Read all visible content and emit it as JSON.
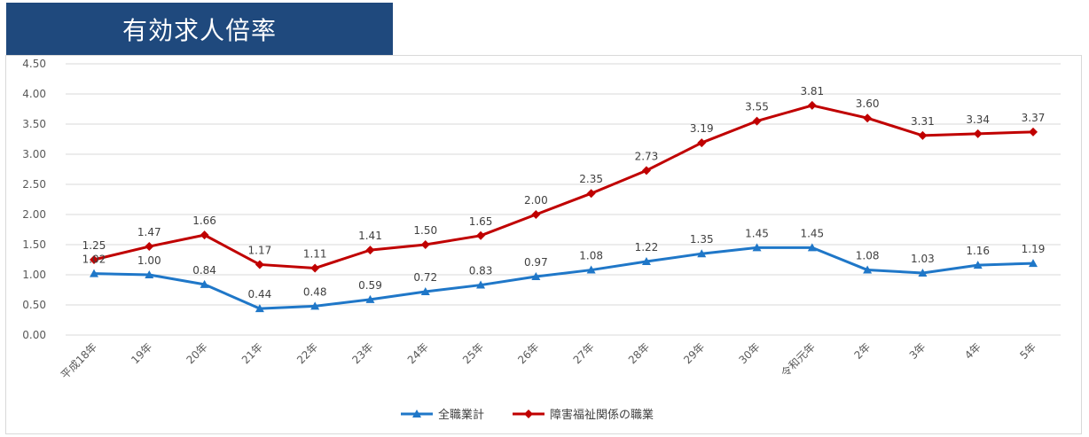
{
  "title": "有効求人倍率",
  "chart_data": {
    "type": "line",
    "categories": [
      "平成18年",
      "19年",
      "20年",
      "21年",
      "22年",
      "23年",
      "24年",
      "25年",
      "26年",
      "27年",
      "28年",
      "29年",
      "30年",
      "令和元年",
      "2年",
      "3年",
      "4年",
      "5年"
    ],
    "series": [
      {
        "name": "全職業計",
        "color": "#1f77c8",
        "marker": "triangle",
        "values": [
          1.02,
          1.0,
          0.84,
          0.44,
          0.48,
          0.59,
          0.72,
          0.83,
          0.97,
          1.08,
          1.22,
          1.35,
          1.45,
          1.45,
          1.08,
          1.03,
          1.16,
          1.19
        ],
        "labels": [
          "1.02",
          "1.00",
          "0.84",
          "0.44",
          "0.48",
          "0.59",
          "0.72",
          "0.83",
          "0.97",
          "1.08",
          "1.22",
          "1.35",
          "1.45",
          "1.45",
          "1.08",
          "1.03",
          "1.16",
          "1.19"
        ]
      },
      {
        "name": "障害福祉関係の職業",
        "color": "#c00000",
        "marker": "diamond",
        "values": [
          1.25,
          1.47,
          1.66,
          1.17,
          1.11,
          1.41,
          1.5,
          1.65,
          2.0,
          2.35,
          2.73,
          3.19,
          3.55,
          3.81,
          3.6,
          3.31,
          3.34,
          3.37
        ],
        "labels": [
          "1.25",
          "1.47",
          "1.66",
          "1.17",
          "1.11",
          "1.41",
          "1.50",
          "1.65",
          "2.00",
          "2.35",
          "2.73",
          "3.19",
          "3.55",
          "3.81",
          "3.60",
          "3.31",
          "3.34",
          "3.37"
        ]
      }
    ],
    "y_ticks": [
      "0.00",
      "0.50",
      "1.00",
      "1.50",
      "2.00",
      "2.50",
      "3.00",
      "3.50",
      "4.00",
      "4.50"
    ],
    "ylim": [
      0,
      4.5
    ],
    "grid": true,
    "legend_position": "bottom"
  }
}
